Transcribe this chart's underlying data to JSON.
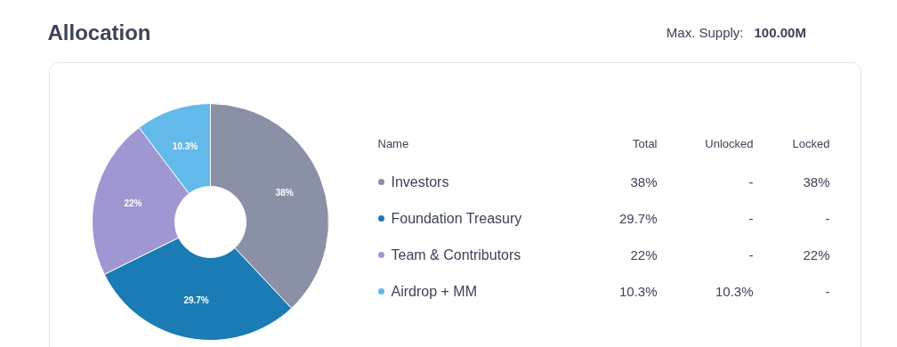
{
  "chart_data": {
    "type": "donut",
    "title": "Allocation",
    "categories": [
      "Investors",
      "Foundation Treasury",
      "Team & Contributors",
      "Airdrop + MM"
    ],
    "values": [
      38,
      29.7,
      22,
      10.3
    ],
    "colors": [
      "#8a90a6",
      "#1a7bb5",
      "#9f97d1",
      "#62b9ea"
    ],
    "value_labels": [
      "38%",
      "29.7%",
      "22%",
      "10.3%"
    ],
    "legend": "right",
    "annotations": [
      "Max. Supply:",
      "100.00M",
      "Name",
      "Total",
      "Unlocked",
      "Locked",
      "-",
      "38%",
      "-",
      "-",
      "-",
      "22%",
      "10.3%",
      "-"
    ]
  }
}
